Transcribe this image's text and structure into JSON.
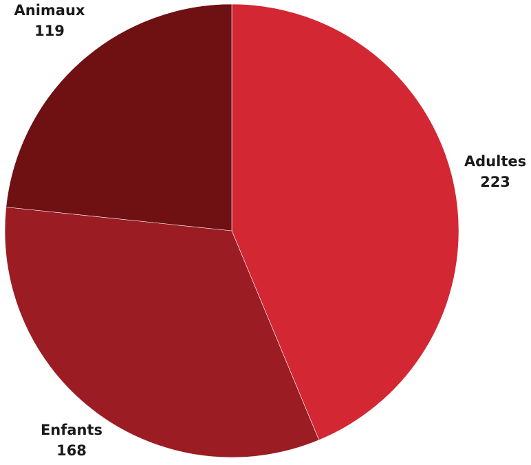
{
  "chart_data": {
    "type": "pie",
    "title": "",
    "slices": [
      {
        "label": "Adultes",
        "value": 223,
        "color": "#d32733"
      },
      {
        "label": "Enfants",
        "value": 168,
        "color": "#9c1c24"
      },
      {
        "label": "Animaux",
        "value": 119,
        "color": "#6f1013"
      }
    ],
    "start": "top",
    "direction": "clockwise",
    "legend": "none",
    "data_labels": "outside, label above value"
  }
}
